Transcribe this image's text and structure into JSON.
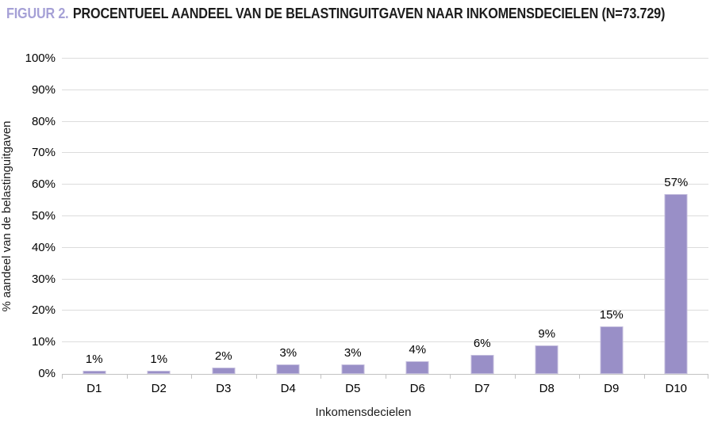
{
  "figure": {
    "title_prefix": "FIGUUR 2.",
    "title_text": "PROCENTUEEL AANDEEL VAN DE BELASTINGUITGAVEN NAAR INKOMENSDECIELEN (N=73.729)"
  },
  "chart_data": {
    "type": "bar",
    "categories": [
      "D1",
      "D2",
      "D3",
      "D4",
      "D5",
      "D6",
      "D7",
      "D8",
      "D9",
      "D10"
    ],
    "values": [
      1,
      1,
      2,
      3,
      3,
      4,
      6,
      9,
      15,
      57
    ],
    "bar_labels": [
      "1%",
      "1%",
      "2%",
      "3%",
      "3%",
      "4%",
      "6%",
      "9%",
      "15%",
      "57%"
    ],
    "title": "FIGUUR 2. PROCENTUEEL AANDEEL VAN DE BELASTINGUITGAVEN NAAR INKOMENSDECIELEN (N=73.729)",
    "xlabel": "Inkomensdecielen",
    "ylabel": "% aandeel van de belastinguitgaven",
    "ylim": [
      0,
      100
    ],
    "ytick_step": 10,
    "ytick_labels": [
      "0%",
      "10%",
      "20%",
      "30%",
      "40%",
      "50%",
      "60%",
      "70%",
      "80%",
      "90%",
      "100%"
    ],
    "grid": true,
    "legend": "none",
    "colors": {
      "bar_fill": "#998fc7",
      "bar_edge": "#c4bede",
      "title_accent": "#a5a0d6",
      "gridline": "#dcdcdc",
      "axis_line": "#c2c2c2",
      "text": "#1c1c1c"
    }
  }
}
